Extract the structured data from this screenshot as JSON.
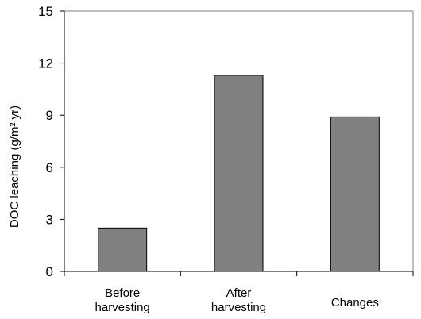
{
  "chart_data": {
    "type": "bar",
    "title": "",
    "xlabel": "",
    "ylabel": "DOC leaching (g/m² yr)",
    "categories": [
      [
        "Before",
        "harvesting"
      ],
      [
        "After",
        "harvesting"
      ],
      [
        "Changes"
      ]
    ],
    "values": [
      2.5,
      11.3,
      8.9
    ],
    "ylim": [
      0,
      15
    ],
    "yticks": [
      0,
      3,
      6,
      9,
      12,
      15
    ],
    "grid": false,
    "legend": "none",
    "colors": {
      "bar_fill": "#808080",
      "bar_stroke": "#000000",
      "axis": "#000000",
      "frame": "#808080"
    }
  }
}
